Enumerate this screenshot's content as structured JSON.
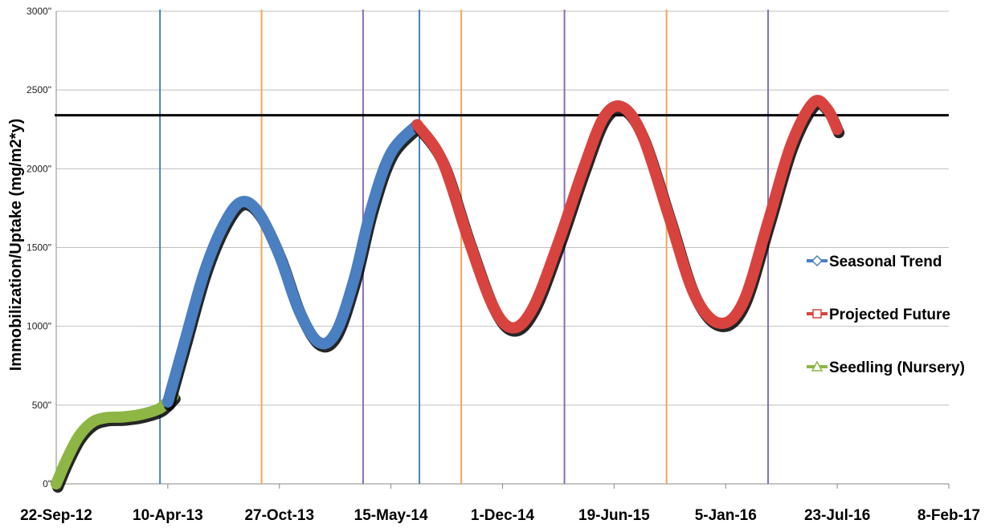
{
  "chart_data": {
    "type": "line",
    "ylabel": "Immobilization/Uptake (mg/m2*y)",
    "ylim": [
      0,
      3000
    ],
    "y_ticks": [
      "0\"",
      "500\"",
      "1000\"",
      "1500\"",
      "2000\"",
      "2500\"",
      "3000\""
    ],
    "y_tick_values": [
      0,
      500,
      1000,
      1500,
      2000,
      2500,
      3000
    ],
    "x_ticks": [
      "22-Sep-12",
      "10-Apr-13",
      "27-Oct-13",
      "15-May-14",
      "1-Dec-14",
      "19-Jun-15",
      "5-Jan-16",
      "23-Jul-16",
      "8-Feb-17"
    ],
    "x_tick_dates": [
      "2012-09-22",
      "2013-04-10",
      "2013-10-27",
      "2014-05-15",
      "2014-12-01",
      "2015-06-19",
      "2016-01-05",
      "2016-07-23",
      "2017-02-08"
    ],
    "xlim": [
      "2012-09-22",
      "2017-02-08"
    ],
    "reference_line": {
      "y": 2340,
      "color": "#000000"
    },
    "vertical_lines": [
      {
        "x": "2013-03-27",
        "color": "#4a7fc1"
      },
      {
        "x": "2013-09-25",
        "color": "#f2a65a"
      },
      {
        "x": "2014-03-26",
        "color": "#8a6db8"
      },
      {
        "x": "2014-07-05",
        "color": "#4a7fc1"
      },
      {
        "x": "2014-09-18",
        "color": "#f2a65a"
      },
      {
        "x": "2015-03-22",
        "color": "#8a6db8"
      },
      {
        "x": "2015-09-21",
        "color": "#f2a65a"
      },
      {
        "x": "2016-03-21",
        "color": "#8a6db8"
      }
    ],
    "series": [
      {
        "name": "Seedling (Nursery)",
        "color": "#8db645",
        "points": [
          {
            "x": "2012-09-22",
            "y": 0
          },
          {
            "x": "2012-10-10",
            "y": 150
          },
          {
            "x": "2012-11-01",
            "y": 300
          },
          {
            "x": "2012-11-25",
            "y": 390
          },
          {
            "x": "2012-12-20",
            "y": 420
          },
          {
            "x": "2013-01-20",
            "y": 425
          },
          {
            "x": "2013-02-20",
            "y": 440
          },
          {
            "x": "2013-03-27",
            "y": 480
          },
          {
            "x": "2013-04-20",
            "y": 560
          }
        ]
      },
      {
        "name": "Seasonal Trend",
        "color": "#4a7fc1",
        "points": [
          {
            "x": "2013-04-10",
            "y": 520
          },
          {
            "x": "2013-05-10",
            "y": 900
          },
          {
            "x": "2013-06-15",
            "y": 1350
          },
          {
            "x": "2013-07-20",
            "y": 1650
          },
          {
            "x": "2013-08-20",
            "y": 1790
          },
          {
            "x": "2013-09-20",
            "y": 1720
          },
          {
            "x": "2013-10-27",
            "y": 1450
          },
          {
            "x": "2013-12-01",
            "y": 1100
          },
          {
            "x": "2014-01-05",
            "y": 900
          },
          {
            "x": "2014-02-05",
            "y": 960
          },
          {
            "x": "2014-03-10",
            "y": 1300
          },
          {
            "x": "2014-04-10",
            "y": 1750
          },
          {
            "x": "2014-05-15",
            "y": 2100
          },
          {
            "x": "2014-07-01",
            "y": 2280
          }
        ]
      },
      {
        "name": "Projected Future",
        "color": "#d9433f",
        "points": [
          {
            "x": "2014-07-01",
            "y": 2280
          },
          {
            "x": "2014-08-15",
            "y": 2050
          },
          {
            "x": "2014-10-01",
            "y": 1550
          },
          {
            "x": "2014-11-15",
            "y": 1120
          },
          {
            "x": "2014-12-20",
            "y": 990
          },
          {
            "x": "2015-01-25",
            "y": 1120
          },
          {
            "x": "2015-03-10",
            "y": 1520
          },
          {
            "x": "2015-04-25",
            "y": 2000
          },
          {
            "x": "2015-06-01",
            "y": 2330
          },
          {
            "x": "2015-07-05",
            "y": 2390
          },
          {
            "x": "2015-08-10",
            "y": 2200
          },
          {
            "x": "2015-09-25",
            "y": 1700
          },
          {
            "x": "2015-11-10",
            "y": 1200
          },
          {
            "x": "2015-12-25",
            "y": 1020
          },
          {
            "x": "2016-02-05",
            "y": 1150
          },
          {
            "x": "2016-03-20",
            "y": 1650
          },
          {
            "x": "2016-05-01",
            "y": 2150
          },
          {
            "x": "2016-06-10",
            "y": 2420
          },
          {
            "x": "2016-07-05",
            "y": 2380
          },
          {
            "x": "2016-07-23",
            "y": 2250
          }
        ]
      }
    ],
    "legend": {
      "placement": "right",
      "entries": [
        {
          "label": "Seasonal Trend",
          "color": "#4a7fc1",
          "marker": "diamond"
        },
        {
          "label": "Projected Future",
          "color": "#d9433f",
          "marker": "square"
        },
        {
          "label": "Seedling (Nursery)",
          "color": "#8db645",
          "marker": "triangle"
        }
      ]
    },
    "grid": true
  }
}
